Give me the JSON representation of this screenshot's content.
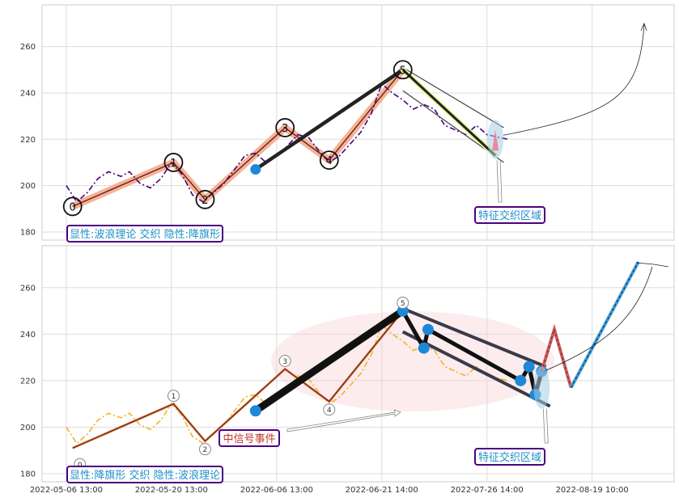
{
  "chart_data": [
    {
      "type": "line",
      "panel": "top",
      "yticks": [
        180,
        200,
        220,
        240,
        260
      ],
      "ylim": [
        176.5,
        278
      ],
      "grid": true,
      "price_series": {
        "color": "#4b0082",
        "style": "dash-dot",
        "points": [
          [
            0,
            200
          ],
          [
            0.5,
            193
          ],
          [
            1,
            197
          ],
          [
            1.5,
            203
          ],
          [
            2,
            206
          ],
          [
            2.6,
            204
          ],
          [
            3,
            206
          ],
          [
            3.5,
            201
          ],
          [
            4,
            199
          ],
          [
            4.5,
            203
          ],
          [
            5,
            210
          ],
          [
            5.5,
            205
          ],
          [
            6,
            196
          ],
          [
            6.5,
            193
          ],
          [
            7,
            197
          ],
          [
            7.5,
            201
          ],
          [
            8,
            207
          ],
          [
            8.5,
            213
          ],
          [
            9,
            214
          ],
          [
            9.5,
            210
          ],
          [
            10,
            213
          ],
          [
            10.5,
            217
          ],
          [
            11,
            222
          ],
          [
            11.5,
            221
          ],
          [
            12,
            215
          ],
          [
            12.5,
            210
          ],
          [
            13,
            213
          ],
          [
            13.5,
            218
          ],
          [
            14,
            223
          ],
          [
            14.5,
            231
          ],
          [
            15,
            244
          ],
          [
            15.5,
            240
          ],
          [
            16,
            237
          ],
          [
            16.5,
            233
          ],
          [
            17,
            235
          ],
          [
            17.5,
            233
          ],
          [
            18,
            226
          ],
          [
            18.5,
            224
          ],
          [
            19,
            222
          ],
          [
            19.5,
            226
          ],
          [
            20,
            222
          ],
          [
            20.5,
            221
          ],
          [
            21,
            220
          ]
        ]
      },
      "wave_points": [
        {
          "label": "0",
          "x": 0.3,
          "y": 191
        },
        {
          "label": "1",
          "x": 5.1,
          "y": 210
        },
        {
          "label": "2",
          "x": 6.6,
          "y": 194
        },
        {
          "label": "3",
          "x": 10.4,
          "y": 225
        },
        {
          "label": "4",
          "x": 12.5,
          "y": 211
        },
        {
          "label": "5",
          "x": 16.0,
          "y": 250
        }
      ],
      "trend_line": {
        "x0": 9.0,
        "y0": 207,
        "x1": 16.0,
        "y1": 250
      },
      "channel": {
        "upper": [
          [
            16.0,
            251
          ],
          [
            20.8,
            225
          ]
        ],
        "lower": [
          [
            16.0,
            241
          ],
          [
            20.8,
            210
          ]
        ],
        "decline": [
          [
            16.0,
            250
          ],
          [
            20.4,
            213
          ]
        ]
      },
      "feature_zone": {
        "x": 20.4,
        "y": 220
      },
      "annotation": "显性:波浪理论 交织 隐性:降旗形",
      "zone_label": "特征交织区域"
    },
    {
      "type": "line",
      "panel": "bottom",
      "yticks": [
        180,
        200,
        220,
        240,
        260
      ],
      "ylim": [
        176.5,
        278
      ],
      "grid": true,
      "xtick_labels": [
        "2022-05-06 13:00",
        "2022-05-20 13:00",
        "2022-06-06 13:00",
        "2022-06-21 14:00",
        "2022-07-26 14:00",
        "2022-08-19 10:00"
      ],
      "xtick_positions": [
        0,
        5,
        10,
        15,
        20,
        25
      ],
      "price_series": {
        "color": "#f0b429",
        "style": "dash-dot",
        "points": [
          [
            0,
            200
          ],
          [
            0.5,
            193
          ],
          [
            1,
            197
          ],
          [
            1.5,
            203
          ],
          [
            2,
            206
          ],
          [
            2.6,
            204
          ],
          [
            3,
            206
          ],
          [
            3.5,
            201
          ],
          [
            4,
            199
          ],
          [
            4.5,
            203
          ],
          [
            5,
            210
          ],
          [
            5.5,
            205
          ],
          [
            6,
            196
          ],
          [
            6.5,
            193
          ],
          [
            7,
            197
          ],
          [
            7.5,
            201
          ],
          [
            8,
            207
          ],
          [
            8.5,
            213
          ],
          [
            9,
            214
          ],
          [
            9.5,
            210
          ],
          [
            10,
            213
          ],
          [
            10.5,
            217
          ],
          [
            11,
            222
          ],
          [
            11.5,
            221
          ],
          [
            12,
            215
          ],
          [
            12.5,
            210
          ],
          [
            13,
            213
          ],
          [
            13.5,
            218
          ],
          [
            14,
            223
          ],
          [
            14.5,
            231
          ],
          [
            15,
            244
          ],
          [
            15.5,
            240
          ],
          [
            16,
            237
          ],
          [
            16.5,
            233
          ],
          [
            17,
            235
          ],
          [
            17.5,
            233
          ],
          [
            18,
            226
          ],
          [
            18.5,
            224
          ],
          [
            19,
            222
          ],
          [
            19.5,
            226
          ],
          [
            20,
            222
          ],
          [
            20.5,
            221
          ],
          [
            21,
            220
          ]
        ]
      },
      "wave_points": [
        {
          "label": "0",
          "x": 0.3,
          "y": 191
        },
        {
          "label": "1",
          "x": 5.1,
          "y": 210
        },
        {
          "label": "2",
          "x": 6.6,
          "y": 194
        },
        {
          "label": "3",
          "x": 10.4,
          "y": 225
        },
        {
          "label": "4",
          "x": 12.5,
          "y": 211
        },
        {
          "label": "5",
          "x": 16.0,
          "y": 250
        }
      ],
      "flag_points": [
        [
          16.0,
          250
        ],
        [
          17.0,
          234
        ],
        [
          17.2,
          242
        ],
        [
          21.6,
          220
        ],
        [
          22.0,
          226
        ],
        [
          22.3,
          214
        ],
        [
          22.6,
          224
        ]
      ],
      "projection_red": [
        [
          22.6,
          224
        ],
        [
          23.2,
          242
        ],
        [
          24.0,
          217
        ]
      ],
      "projection_blue": [
        [
          24.0,
          217
        ],
        [
          27.2,
          271
        ]
      ],
      "signal_label": "中信号事件",
      "annotation": "显性:降旗形 交织 隐性:波浪理论",
      "zone_label": "特征交织区域"
    }
  ]
}
